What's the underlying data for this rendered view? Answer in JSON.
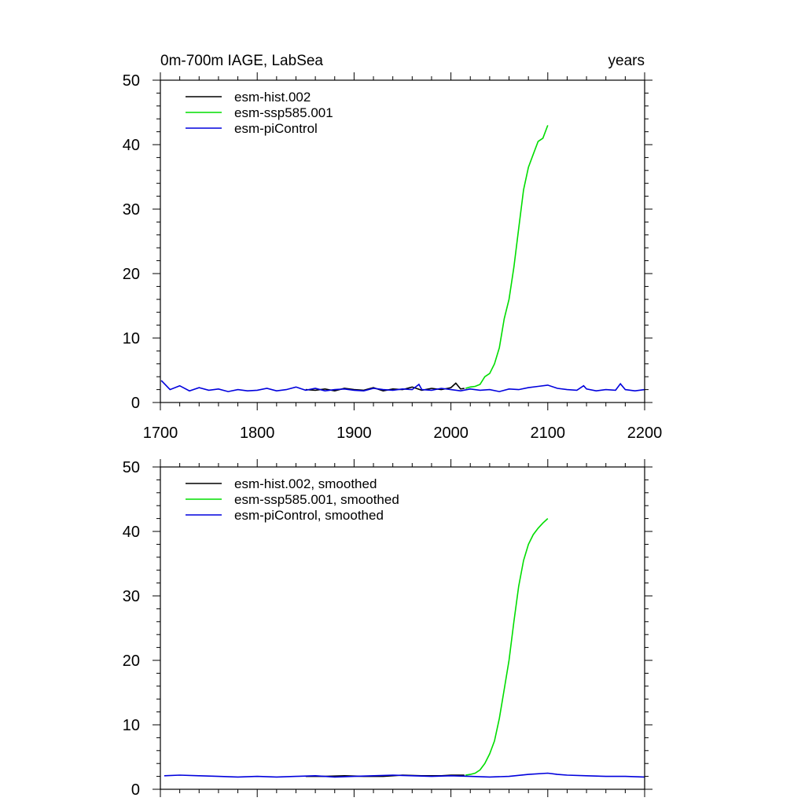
{
  "chart_data": [
    {
      "type": "line",
      "title": "0m-700m IAGE, LabSea",
      "units_label": "years",
      "xlim": [
        1700,
        2200
      ],
      "ylim": [
        0,
        50
      ],
      "xticks": [
        1700,
        1800,
        1900,
        2000,
        2100,
        2200
      ],
      "xtick_labels": [
        "1700",
        "1800",
        "1900",
        "2000",
        "2100",
        "2200"
      ],
      "yticks": [
        0,
        10,
        20,
        30,
        40,
        50
      ],
      "ytick_labels": [
        "0",
        "10",
        "20",
        "30",
        "40",
        "50"
      ],
      "legend_position": "top-left",
      "series": [
        {
          "name": "esm-hist.002",
          "color": "#000000",
          "x": [
            1850,
            1860,
            1870,
            1880,
            1890,
            1900,
            1910,
            1920,
            1930,
            1940,
            1950,
            1960,
            1970,
            1980,
            1990,
            2000,
            2005,
            2010,
            2014
          ],
          "y": [
            2.0,
            1.9,
            2.1,
            1.8,
            2.2,
            2.0,
            1.9,
            2.3,
            1.8,
            2.1,
            2.0,
            2.4,
            1.9,
            2.2,
            2.0,
            2.3,
            3.0,
            2.1,
            2.2
          ]
        },
        {
          "name": "esm-ssp585.001",
          "color": "#00dd00",
          "x": [
            2015,
            2020,
            2025,
            2030,
            2035,
            2040,
            2045,
            2050,
            2055,
            2060,
            2065,
            2070,
            2075,
            2080,
            2085,
            2090,
            2095,
            2100
          ],
          "y": [
            2.2,
            2.4,
            2.5,
            2.8,
            4.0,
            4.5,
            6.0,
            8.5,
            13.0,
            16.0,
            21.0,
            27.0,
            33.0,
            36.5,
            38.5,
            40.5,
            41.0,
            43.0
          ]
        },
        {
          "name": "esm-piControl",
          "color": "#0000dd",
          "x": [
            1701,
            1710,
            1720,
            1730,
            1740,
            1750,
            1760,
            1770,
            1780,
            1790,
            1800,
            1810,
            1820,
            1830,
            1840,
            1850,
            1860,
            1870,
            1880,
            1890,
            1900,
            1910,
            1920,
            1930,
            1940,
            1950,
            1960,
            1967,
            1970,
            1980,
            1990,
            2000,
            2010,
            2020,
            2030,
            2040,
            2050,
            2060,
            2070,
            2080,
            2090,
            2100,
            2110,
            2120,
            2130,
            2137,
            2140,
            2150,
            2160,
            2170,
            2175,
            2180,
            2190,
            2200
          ],
          "y": [
            3.4,
            2.0,
            2.6,
            1.8,
            2.3,
            1.9,
            2.1,
            1.7,
            2.0,
            1.8,
            1.9,
            2.2,
            1.8,
            2.0,
            2.4,
            1.9,
            2.2,
            1.8,
            2.0,
            2.1,
            1.9,
            1.8,
            2.2,
            2.0,
            1.9,
            2.1,
            2.0,
            2.8,
            2.0,
            1.9,
            2.2,
            2.0,
            1.8,
            2.1,
            1.9,
            2.0,
            1.7,
            2.1,
            2.0,
            2.3,
            2.5,
            2.7,
            2.2,
            2.0,
            1.9,
            2.6,
            2.1,
            1.8,
            2.0,
            1.9,
            2.9,
            2.0,
            1.8,
            2.0
          ]
        }
      ]
    },
    {
      "type": "line",
      "title": "",
      "xlim": [
        1700,
        2200
      ],
      "ylim": [
        0,
        50
      ],
      "xticks": [
        1700,
        1800,
        1900,
        2000,
        2100,
        2200
      ],
      "yticks": [
        0,
        10,
        20,
        30,
        40,
        50
      ],
      "ytick_labels": [
        "0",
        "10",
        "20",
        "30",
        "40",
        "50"
      ],
      "legend_position": "top-left",
      "series": [
        {
          "name": "esm-hist.002, smoothed",
          "color": "#000000",
          "x": [
            1850,
            1870,
            1890,
            1910,
            1930,
            1950,
            1970,
            1990,
            2000,
            2014
          ],
          "y": [
            2.0,
            2.0,
            2.1,
            2.0,
            2.0,
            2.2,
            2.1,
            2.1,
            2.2,
            2.2
          ]
        },
        {
          "name": "esm-ssp585.001, smoothed",
          "color": "#00dd00",
          "x": [
            2015,
            2020,
            2025,
            2030,
            2035,
            2040,
            2045,
            2050,
            2055,
            2060,
            2065,
            2070,
            2075,
            2080,
            2085,
            2090,
            2095,
            2100
          ],
          "y": [
            2.2,
            2.3,
            2.5,
            3.0,
            4.0,
            5.5,
            7.5,
            11.0,
            15.5,
            20.0,
            26.0,
            31.5,
            35.5,
            38.0,
            39.5,
            40.5,
            41.3,
            42.0
          ]
        },
        {
          "name": "esm-piControl, smoothed",
          "color": "#0000dd",
          "x": [
            1704,
            1720,
            1740,
            1760,
            1780,
            1800,
            1820,
            1840,
            1860,
            1880,
            1900,
            1920,
            1940,
            1960,
            1980,
            2000,
            2020,
            2040,
            2060,
            2080,
            2100,
            2110,
            2120,
            2140,
            2160,
            2180,
            2200
          ],
          "y": [
            2.1,
            2.2,
            2.1,
            2.0,
            1.9,
            2.0,
            1.9,
            2.0,
            2.1,
            1.9,
            2.0,
            2.1,
            2.2,
            2.1,
            2.0,
            2.1,
            2.0,
            1.9,
            2.0,
            2.3,
            2.5,
            2.3,
            2.2,
            2.1,
            2.0,
            2.0,
            1.9
          ]
        }
      ]
    }
  ]
}
